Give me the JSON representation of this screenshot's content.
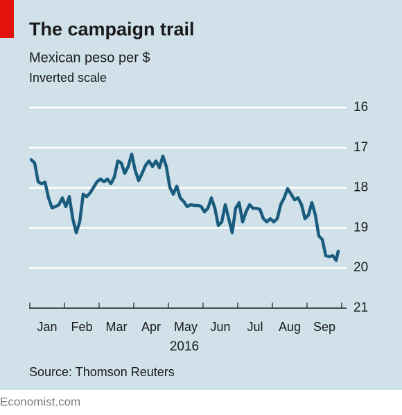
{
  "chart_data": {
    "type": "line",
    "title": "The campaign trail",
    "subtitle": "Mexican peso per $",
    "annotation": "Inverted scale",
    "source": "Source: Thomson Reuters",
    "footer": "Economist.com",
    "xlabel": "2016",
    "categories": [
      "Jan",
      "Feb",
      "Mar",
      "Apr",
      "May",
      "Jun",
      "Jul",
      "Aug",
      "Sep"
    ],
    "xlim": [
      0,
      9.14
    ],
    "xticks": [
      0,
      1,
      2,
      3,
      4,
      5,
      6,
      7,
      8,
      9
    ],
    "ylim": [
      16,
      21
    ],
    "yticks": [
      16,
      17,
      18,
      19,
      20,
      21
    ],
    "invert_y": true,
    "grid": true,
    "color": "#1a5c7d",
    "x": [
      0.04,
      0.14,
      0.24,
      0.34,
      0.44,
      0.54,
      0.64,
      0.74,
      0.84,
      0.94,
      1.04,
      1.14,
      1.24,
      1.34,
      1.44,
      1.54,
      1.64,
      1.74,
      1.84,
      1.94,
      2.04,
      2.14,
      2.24,
      2.34,
      2.44,
      2.54,
      2.64,
      2.74,
      2.84,
      2.94,
      3.04,
      3.14,
      3.24,
      3.34,
      3.44,
      3.54,
      3.64,
      3.74,
      3.84,
      3.94,
      4.04,
      4.14,
      4.24,
      4.34,
      4.44,
      4.54,
      4.64,
      4.74,
      4.84,
      4.94,
      5.04,
      5.14,
      5.24,
      5.34,
      5.44,
      5.54,
      5.64,
      5.74,
      5.84,
      5.94,
      6.04,
      6.14,
      6.24,
      6.34,
      6.44,
      6.54,
      6.64,
      6.74,
      6.84,
      6.94,
      7.04,
      7.14,
      7.24,
      7.34,
      7.44,
      7.54,
      7.64,
      7.74,
      7.84,
      7.94,
      8.04,
      8.14,
      8.24,
      8.34,
      8.44,
      8.54,
      8.64,
      8.74,
      8.84,
      8.9
    ],
    "values": [
      17.3,
      17.38,
      17.85,
      17.9,
      17.86,
      18.25,
      18.5,
      18.47,
      18.42,
      18.25,
      18.47,
      18.22,
      18.77,
      19.12,
      18.85,
      18.16,
      18.22,
      18.13,
      17.99,
      17.85,
      17.78,
      17.85,
      17.78,
      17.9,
      17.73,
      17.33,
      17.38,
      17.64,
      17.47,
      17.16,
      17.56,
      17.82,
      17.64,
      17.44,
      17.33,
      17.47,
      17.33,
      17.5,
      17.21,
      17.47,
      17.99,
      18.16,
      17.96,
      18.25,
      18.34,
      18.47,
      18.42,
      18.44,
      18.44,
      18.46,
      18.6,
      18.51,
      18.25,
      18.51,
      18.94,
      18.85,
      18.42,
      18.77,
      19.12,
      18.51,
      18.37,
      18.85,
      18.6,
      18.42,
      18.51,
      18.51,
      18.54,
      18.77,
      18.85,
      18.77,
      18.85,
      18.77,
      18.42,
      18.25,
      18.02,
      18.16,
      18.3,
      18.25,
      18.42,
      18.77,
      18.68,
      18.37,
      18.68,
      19.2,
      19.29,
      19.69,
      19.72,
      19.69,
      19.81,
      19.58
    ]
  }
}
